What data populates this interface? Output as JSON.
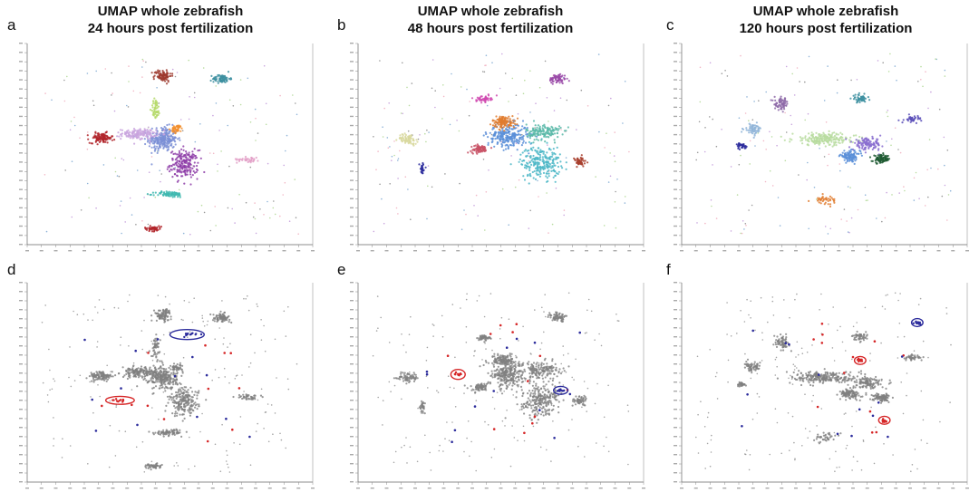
{
  "figure": {
    "panel_labels": [
      "a",
      "b",
      "c",
      "d",
      "e",
      "f"
    ],
    "titles": [
      {
        "line1": "UMAP whole zebrafish",
        "line2": "24 hours post fertilization"
      },
      {
        "line1": "UMAP whole zebrafish",
        "line2": "48 hours post fertilization"
      },
      {
        "line1": "UMAP whole zebrafish",
        "line2": "120 hours post fertilization"
      }
    ]
  },
  "colors": {
    "gray_points": "#7f7f7f",
    "highlight_red": "#d62728",
    "highlight_blue": "#2c2c9c",
    "axis": "#444444"
  },
  "chart_data": [
    {
      "panel": "a",
      "type": "scatter",
      "title": "UMAP whole zebrafish 24 hours post fertilization",
      "mode": "colored_clusters",
      "xlabel": "",
      "ylabel": "",
      "clusters": [
        {
          "cx": -0.05,
          "cy": 0.05,
          "rx": 0.1,
          "ry": 0.12,
          "color": "#7b8fd6",
          "n": 260
        },
        {
          "cx": 0.1,
          "cy": -0.2,
          "rx": 0.1,
          "ry": 0.14,
          "color": "#8e3ea8",
          "n": 200
        },
        {
          "cx": -0.22,
          "cy": 0.1,
          "rx": 0.12,
          "ry": 0.05,
          "color": "#c9a5de",
          "n": 150
        },
        {
          "cx": -0.48,
          "cy": 0.06,
          "rx": 0.08,
          "ry": 0.05,
          "color": "#b2262b",
          "n": 110
        },
        {
          "cx": -0.05,
          "cy": 0.68,
          "rx": 0.06,
          "ry": 0.06,
          "color": "#9e3a2e",
          "n": 90
        },
        {
          "cx": 0.36,
          "cy": 0.65,
          "rx": 0.06,
          "ry": 0.04,
          "color": "#3d8fa0",
          "n": 80
        },
        {
          "cx": 0.0,
          "cy": -0.5,
          "rx": 0.1,
          "ry": 0.03,
          "color": "#3fb8b0",
          "n": 80
        },
        {
          "cx": -0.1,
          "cy": 0.35,
          "rx": 0.03,
          "ry": 0.1,
          "color": "#b5d96a",
          "n": 50
        },
        {
          "cx": 0.05,
          "cy": 0.15,
          "rx": 0.04,
          "ry": 0.04,
          "color": "#f28e2b",
          "n": 40
        },
        {
          "cx": 0.55,
          "cy": -0.15,
          "rx": 0.08,
          "ry": 0.03,
          "color": "#e3a1c8",
          "n": 40
        },
        {
          "cx": -0.12,
          "cy": -0.84,
          "rx": 0.06,
          "ry": 0.025,
          "color": "#b2262b",
          "n": 50
        }
      ]
    },
    {
      "panel": "b",
      "type": "scatter",
      "title": "UMAP whole zebrafish 48 hours post fertilization",
      "mode": "colored_clusters",
      "xlabel": "",
      "ylabel": "",
      "clusters": [
        {
          "cx": 0.05,
          "cy": 0.08,
          "rx": 0.14,
          "ry": 0.12,
          "color": "#5b8fd8",
          "n": 260
        },
        {
          "cx": 0.28,
          "cy": -0.18,
          "rx": 0.14,
          "ry": 0.16,
          "color": "#4cb7c7",
          "n": 240
        },
        {
          "cx": 0.3,
          "cy": 0.12,
          "rx": 0.12,
          "ry": 0.08,
          "color": "#59b9a8",
          "n": 150
        },
        {
          "cx": 0.02,
          "cy": 0.22,
          "rx": 0.08,
          "ry": 0.06,
          "color": "#e07b2e",
          "n": 120
        },
        {
          "cx": -0.15,
          "cy": -0.05,
          "rx": 0.06,
          "ry": 0.04,
          "color": "#c85064",
          "n": 70
        },
        {
          "cx": -0.65,
          "cy": 0.05,
          "rx": 0.07,
          "ry": 0.05,
          "color": "#d8d89e",
          "n": 70
        },
        {
          "cx": 0.4,
          "cy": 0.65,
          "rx": 0.06,
          "ry": 0.05,
          "color": "#9a4aa8",
          "n": 70
        },
        {
          "cx": -0.12,
          "cy": 0.45,
          "rx": 0.05,
          "ry": 0.03,
          "color": "#d04ab0",
          "n": 50
        },
        {
          "cx": 0.55,
          "cy": -0.18,
          "rx": 0.05,
          "ry": 0.05,
          "color": "#a8402e",
          "n": 50
        },
        {
          "cx": -0.55,
          "cy": -0.25,
          "rx": 0.02,
          "ry": 0.06,
          "color": "#2c2c9c",
          "n": 30
        }
      ]
    },
    {
      "panel": "c",
      "type": "scatter",
      "title": "UMAP whole zebrafish 120 hours post fertilization",
      "mode": "colored_clusters",
      "xlabel": "",
      "ylabel": "",
      "clusters": [
        {
          "cx": 0.0,
          "cy": 0.05,
          "rx": 0.22,
          "ry": 0.06,
          "color": "#b9dca0",
          "n": 220
        },
        {
          "cx": 0.18,
          "cy": -0.12,
          "rx": 0.07,
          "ry": 0.05,
          "color": "#5b8fd8",
          "n": 110
        },
        {
          "cx": 0.3,
          "cy": 0.0,
          "rx": 0.1,
          "ry": 0.06,
          "color": "#8a6ed0",
          "n": 120
        },
        {
          "cx": 0.4,
          "cy": -0.15,
          "rx": 0.06,
          "ry": 0.04,
          "color": "#1e5a32",
          "n": 90
        },
        {
          "cx": -0.3,
          "cy": 0.4,
          "rx": 0.05,
          "ry": 0.06,
          "color": "#8e6aa8",
          "n": 70
        },
        {
          "cx": -0.5,
          "cy": 0.15,
          "rx": 0.06,
          "ry": 0.05,
          "color": "#8fb4d8",
          "n": 60
        },
        {
          "cx": 0.25,
          "cy": 0.45,
          "rx": 0.05,
          "ry": 0.04,
          "color": "#3d8fa0",
          "n": 50
        },
        {
          "cx": 0.62,
          "cy": 0.25,
          "rx": 0.06,
          "ry": 0.03,
          "color": "#5b4fb8",
          "n": 40
        },
        {
          "cx": -0.58,
          "cy": -0.02,
          "rx": 0.03,
          "ry": 0.03,
          "color": "#2c2c9c",
          "n": 30
        },
        {
          "cx": 0.0,
          "cy": -0.55,
          "rx": 0.08,
          "ry": 0.04,
          "color": "#e07b2e",
          "n": 40
        }
      ]
    },
    {
      "panel": "d",
      "type": "scatter",
      "title": "",
      "mode": "gray_highlight",
      "xlabel": "",
      "ylabel": "",
      "highlight_circles": [
        {
          "cx": -0.35,
          "cy": -0.18,
          "rx": 0.1,
          "ry": 0.04,
          "color": "red"
        },
        {
          "cx": 0.12,
          "cy": 0.48,
          "rx": 0.12,
          "ry": 0.05,
          "color": "blue"
        }
      ]
    },
    {
      "panel": "e",
      "type": "scatter",
      "title": "",
      "mode": "gray_highlight",
      "xlabel": "",
      "ylabel": "",
      "highlight_circles": [
        {
          "cx": -0.3,
          "cy": 0.08,
          "rx": 0.05,
          "ry": 0.05,
          "color": "red"
        },
        {
          "cx": 0.42,
          "cy": -0.08,
          "rx": 0.05,
          "ry": 0.04,
          "color": "blue"
        }
      ]
    },
    {
      "panel": "f",
      "type": "scatter",
      "title": "",
      "mode": "gray_highlight",
      "xlabel": "",
      "ylabel": "",
      "highlight_circles": [
        {
          "cx": 0.25,
          "cy": 0.22,
          "rx": 0.04,
          "ry": 0.04,
          "color": "red"
        },
        {
          "cx": 0.42,
          "cy": -0.38,
          "rx": 0.04,
          "ry": 0.04,
          "color": "red"
        },
        {
          "cx": 0.65,
          "cy": 0.6,
          "rx": 0.04,
          "ry": 0.04,
          "color": "blue"
        }
      ]
    }
  ]
}
